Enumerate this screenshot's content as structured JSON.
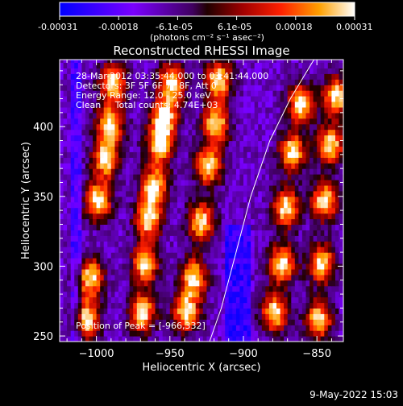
{
  "colorbar": {
    "tick_labels": [
      "-0.00031",
      "-0.00018",
      "-6.1e-05",
      "6.1e-05",
      "0.00018",
      "0.00031"
    ],
    "unit_label": "(photons cm⁻² s⁻¹ asec⁻²)",
    "range": [
      -0.00031,
      0.00031
    ]
  },
  "chart_data": {
    "type": "heatmap",
    "title": "Reconstructed RHESSI Image",
    "xlabel": "Heliocentric X (arcsec)",
    "ylabel": "Heliocentric Y (arcsec)",
    "xlim": [
      -1025,
      -832
    ],
    "ylim": [
      246,
      448
    ],
    "xticks": [
      -1000,
      -950,
      -900,
      -850
    ],
    "yticks": [
      250,
      300,
      350,
      400
    ],
    "xtick_labels": [
      "−1000",
      "−950",
      "−900",
      "−850"
    ],
    "ytick_labels": [
      "250",
      "300",
      "350",
      "400"
    ],
    "annotations": [
      "28-Mar-2012 03:35:44.000 to 03:41:44.000",
      "Detectors: 3F 5F 6F 7F 8F, Att 0",
      "Energy Range: 12.0 - 25.0 keV",
      "Clean     Total counts: 4.74E+03"
    ],
    "peak_label": "Position of Peak = [-966,332]",
    "limb_curve": [
      [
        -923,
        246
      ],
      [
        -915,
        270
      ],
      [
        -905,
        310
      ],
      [
        -895,
        350
      ],
      [
        -882,
        390
      ],
      [
        -868,
        420
      ],
      [
        -852,
        448
      ]
    ],
    "bright_bands": [
      {
        "x": [
          -1008,
          255,
          448
        ],
        "centers": [
          [
            -1008,
            260
          ],
          [
            -1005,
            290
          ],
          [
            -1000,
            345
          ],
          [
            -995,
            375
          ],
          [
            -992,
            400
          ],
          [
            -990,
            430
          ]
        ]
      },
      {
        "x": [
          -965,
          255,
          448
        ],
        "centers": [
          [
            -970,
            265
          ],
          [
            -968,
            300
          ],
          [
            -966,
            332
          ],
          [
            -962,
            355
          ],
          [
            -958,
            385
          ],
          [
            -955,
            405
          ],
          [
            -950,
            430
          ]
        ]
      },
      {
        "x": [
          -930,
          255,
          448
        ],
        "centers": [
          [
            -940,
            265
          ],
          [
            -935,
            290
          ],
          [
            -930,
            330
          ],
          [
            -925,
            370
          ],
          [
            -920,
            400
          ],
          [
            -918,
            432
          ]
        ]
      },
      {
        "x": [
          -875,
          255,
          448
        ],
        "centers": [
          [
            -880,
            265
          ],
          [
            -875,
            300
          ],
          [
            -872,
            340
          ],
          [
            -868,
            380
          ],
          [
            -862,
            415
          ]
        ]
      },
      {
        "x": [
          -845,
          255,
          448
        ],
        "centers": [
          [
            -850,
            260
          ],
          [
            -848,
            300
          ],
          [
            -846,
            345
          ],
          [
            -842,
            385
          ],
          [
            -838,
            420
          ]
        ]
      }
    ]
  },
  "footer": {
    "date": "9-May-2022 15:03"
  }
}
